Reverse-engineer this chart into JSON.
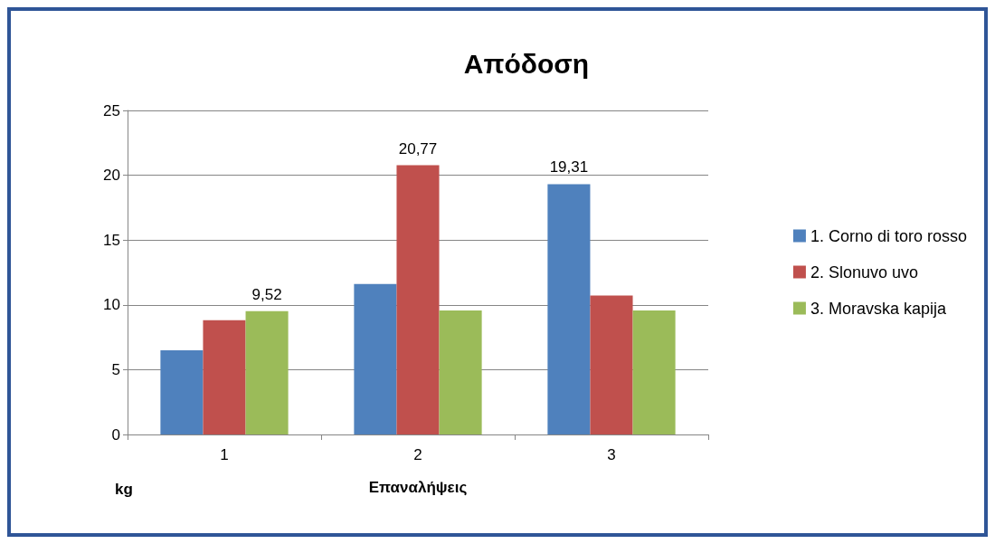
{
  "chart_data": {
    "type": "bar",
    "title": "Απόδοση",
    "xlabel": "Επαναλήψεις",
    "ylabel": "kg",
    "categories": [
      "1",
      "2",
      "3"
    ],
    "series": [
      {
        "name": "1. Corno di toro rosso",
        "color": "#4f81bd",
        "values": [
          6.49,
          11.61,
          19.31
        ],
        "value_labels": [
          null,
          null,
          "19,31"
        ]
      },
      {
        "name": "2. Slonuvo uvo",
        "color": "#c0504d",
        "values": [
          8.81,
          20.77,
          10.72
        ],
        "value_labels": [
          null,
          "20,77",
          null
        ]
      },
      {
        "name": "3. Moravska kapija",
        "color": "#9bbb59",
        "values": [
          9.52,
          9.56,
          9.56
        ],
        "value_labels": [
          "9,52",
          null,
          null
        ]
      }
    ],
    "ylim": [
      0,
      25
    ],
    "yticks": [
      0,
      5,
      10,
      15,
      20,
      25
    ],
    "grid": "y",
    "legend": "right"
  }
}
